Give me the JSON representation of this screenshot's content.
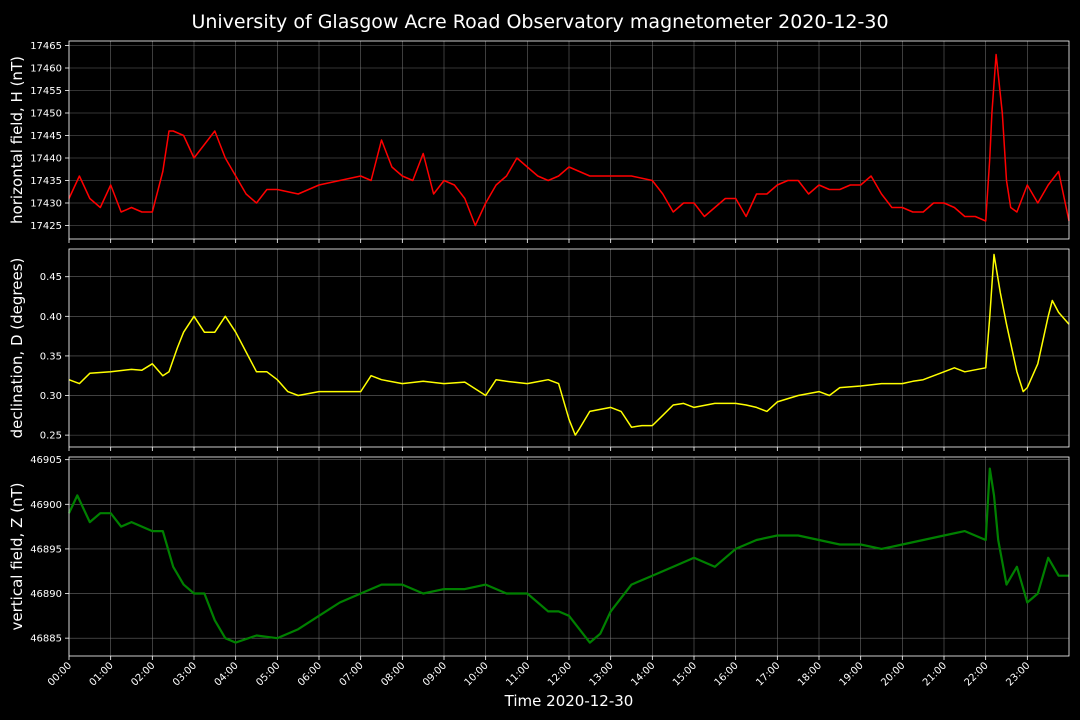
{
  "title": "University of Glasgow Acre Road Observatory magnetometer 2020-12-30",
  "xlabel": "Time 2020-12-30",
  "x_tick_labels": [
    "00:00",
    "01:00",
    "02:00",
    "03:00",
    "04:00",
    "05:00",
    "06:00",
    "07:00",
    "08:00",
    "09:00",
    "10:00",
    "11:00",
    "12:00",
    "13:00",
    "14:00",
    "15:00",
    "16:00",
    "17:00",
    "18:00",
    "19:00",
    "20:00",
    "21:00",
    "22:00",
    "23:00"
  ],
  "colors": {
    "background": "#000000",
    "H": "#ff0000",
    "D": "#ffff00",
    "Z": "#008000",
    "grid": "#808080"
  },
  "chart_data": [
    {
      "type": "line",
      "ylabel": "horizontal field, H (nT)",
      "xlim": [
        0,
        24
      ],
      "ylim": [
        17422,
        17466
      ],
      "yticks": [
        17425,
        17430,
        17435,
        17440,
        17445,
        17450,
        17455,
        17460,
        17465
      ],
      "grid": true,
      "color": "#ff0000",
      "x": [
        0,
        0.25,
        0.5,
        0.75,
        1,
        1.25,
        1.5,
        1.75,
        2,
        2.25,
        2.4,
        2.5,
        2.75,
        3,
        3.25,
        3.5,
        3.75,
        4,
        4.25,
        4.5,
        4.75,
        5,
        5.5,
        6,
        6.5,
        7,
        7.25,
        7.5,
        7.75,
        8,
        8.25,
        8.5,
        8.75,
        9,
        9.25,
        9.5,
        9.75,
        10,
        10.25,
        10.5,
        10.75,
        11,
        11.25,
        11.5,
        11.75,
        12,
        12.5,
        13,
        13.5,
        14,
        14.25,
        14.5,
        14.75,
        15,
        15.25,
        15.5,
        15.75,
        16,
        16.25,
        16.5,
        16.75,
        17,
        17.25,
        17.5,
        17.75,
        18,
        18.25,
        18.5,
        18.75,
        19,
        19.25,
        19.5,
        19.75,
        20,
        20.25,
        20.5,
        20.75,
        21,
        21.25,
        21.5,
        21.75,
        22,
        22.1,
        22.15,
        22.25,
        22.4,
        22.5,
        22.6,
        22.75,
        23,
        23.25,
        23.5,
        23.75,
        24
      ],
      "series": [
        {
          "values": [
            17431,
            17436,
            17431,
            17429,
            17434,
            17428,
            17429,
            17428,
            17428,
            17437,
            17446,
            17446,
            17445,
            17440,
            17443,
            17446,
            17440,
            17436,
            17432,
            17430,
            17433,
            17433,
            17432,
            17434,
            17435,
            17436,
            17435,
            17444,
            17438,
            17436,
            17435,
            17441,
            17432,
            17435,
            17434,
            17431,
            17425,
            17430,
            17434,
            17436,
            17440,
            17438,
            17436,
            17435,
            17436,
            17438,
            17436,
            17436,
            17436,
            17435,
            17432,
            17428,
            17430,
            17430,
            17427,
            17429,
            17431,
            17431,
            17427,
            17432,
            17432,
            17434,
            17435,
            17435,
            17432,
            17434,
            17433,
            17433,
            17434,
            17434,
            17436,
            17432,
            17429,
            17429,
            17428,
            17428,
            17430,
            17430,
            17429,
            17427,
            17427,
            17426,
            17440,
            17450,
            17463,
            17450,
            17435,
            17429,
            17428,
            17434,
            17430,
            17434,
            17437,
            17426
          ]
        }
      ]
    },
    {
      "type": "line",
      "ylabel": "declination, D (degrees)",
      "xlim": [
        0,
        24
      ],
      "ylim": [
        0.235,
        0.485
      ],
      "yticks": [
        0.25,
        0.3,
        0.35,
        0.4,
        0.45
      ],
      "grid": true,
      "color": "#ffff00",
      "x": [
        0,
        0.25,
        0.5,
        1,
        1.5,
        1.75,
        2,
        2.25,
        2.4,
        2.6,
        2.75,
        3,
        3.25,
        3.5,
        3.75,
        4,
        4.25,
        4.5,
        4.75,
        5,
        5.25,
        5.5,
        6,
        6.5,
        7,
        7.25,
        7.5,
        8,
        8.5,
        9,
        9.5,
        10,
        10.25,
        10.5,
        11,
        11.5,
        11.75,
        12,
        12.15,
        12.25,
        12.5,
        13,
        13.25,
        13.5,
        13.75,
        14,
        14.25,
        14.5,
        14.75,
        15,
        15.5,
        16,
        16.25,
        16.5,
        16.75,
        17,
        17.5,
        18,
        18.25,
        18.5,
        19,
        19.5,
        20,
        20.25,
        20.5,
        21,
        21.25,
        21.5,
        22,
        22.1,
        22.2,
        22.35,
        22.5,
        22.75,
        22.9,
        23,
        23.25,
        23.5,
        23.6,
        23.75,
        24
      ],
      "series": [
        {
          "values": [
            0.32,
            0.315,
            0.328,
            0.33,
            0.333,
            0.332,
            0.34,
            0.325,
            0.33,
            0.36,
            0.38,
            0.4,
            0.38,
            0.38,
            0.4,
            0.38,
            0.355,
            0.33,
            0.33,
            0.32,
            0.305,
            0.3,
            0.305,
            0.305,
            0.305,
            0.325,
            0.32,
            0.315,
            0.318,
            0.315,
            0.317,
            0.3,
            0.32,
            0.318,
            0.315,
            0.32,
            0.315,
            0.27,
            0.25,
            0.258,
            0.28,
            0.285,
            0.28,
            0.26,
            0.262,
            0.262,
            0.275,
            0.288,
            0.29,
            0.285,
            0.29,
            0.29,
            0.288,
            0.285,
            0.28,
            0.292,
            0.3,
            0.305,
            0.3,
            0.31,
            0.312,
            0.315,
            0.315,
            0.318,
            0.32,
            0.33,
            0.335,
            0.33,
            0.335,
            0.4,
            0.478,
            0.43,
            0.39,
            0.33,
            0.305,
            0.31,
            0.34,
            0.4,
            0.42,
            0.405,
            0.39
          ]
        }
      ]
    },
    {
      "type": "line",
      "ylabel": "vertical field, Z (nT)",
      "xlim": [
        0,
        24
      ],
      "ylim": [
        46883,
        46905.3
      ],
      "yticks": [
        46885,
        46890,
        46895,
        46900,
        46905
      ],
      "grid": true,
      "color": "#008000",
      "x": [
        0,
        0.2,
        0.5,
        0.75,
        1,
        1.25,
        1.5,
        1.75,
        2,
        2.25,
        2.5,
        2.75,
        3,
        3.25,
        3.5,
        3.75,
        4,
        4.5,
        5,
        5.5,
        6,
        6.5,
        7,
        7.5,
        8,
        8.5,
        9,
        9.5,
        10,
        10.5,
        11,
        11.5,
        11.75,
        12,
        12.25,
        12.5,
        12.75,
        13,
        13.5,
        14,
        14.5,
        15,
        15.5,
        16,
        16.5,
        17,
        17.5,
        18,
        18.5,
        19,
        19.5,
        20,
        20.5,
        21,
        21.5,
        22,
        22.1,
        22.2,
        22.3,
        22.5,
        22.75,
        23,
        23.25,
        23.5,
        23.75,
        24
      ],
      "series": [
        {
          "values": [
            46899,
            46901,
            46898,
            46899,
            46899,
            46897.5,
            46898,
            46897.5,
            46897,
            46897,
            46893,
            46891,
            46890,
            46890,
            46887,
            46885,
            46884.5,
            46885.3,
            46885,
            46886,
            46887.5,
            46889,
            46890,
            46891,
            46891,
            46890,
            46890.5,
            46890.5,
            46891,
            46890,
            46890,
            46888,
            46888,
            46887.5,
            46886,
            46884.5,
            46885.5,
            46888,
            46891,
            46892,
            46893,
            46894,
            46893,
            46895,
            46896,
            46896.5,
            46896.5,
            46896,
            46895.5,
            46895.5,
            46895,
            46895.5,
            46896,
            46896.5,
            46897,
            46896,
            46904,
            46901,
            46896,
            46891,
            46893,
            46889,
            46890,
            46894,
            46892,
            46892
          ]
        }
      ]
    }
  ]
}
